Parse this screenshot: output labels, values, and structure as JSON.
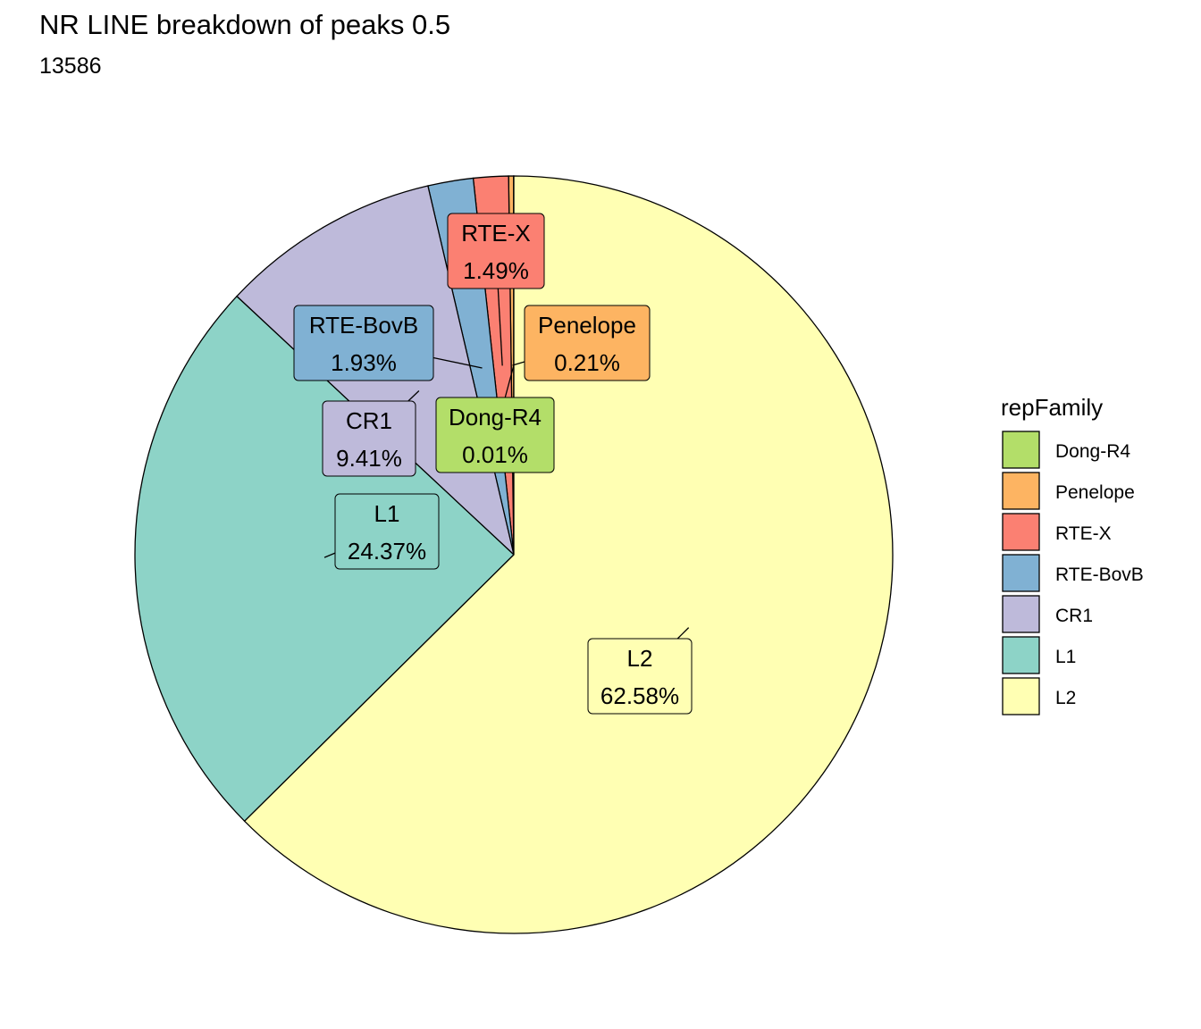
{
  "chart_data": {
    "type": "pie",
    "title": "NR LINE breakdown of peaks 0.5",
    "subtitle": "13586",
    "legend": {
      "title": "repFamily",
      "position": "right",
      "entries": [
        "Dong-R4",
        "Penelope",
        "RTE-X",
        "RTE-BovB",
        "CR1",
        "L1",
        "L2"
      ]
    },
    "slices": [
      {
        "label": "Dong-R4",
        "value": 0.01,
        "value_label": "0.01%",
        "color": "#b3de69"
      },
      {
        "label": "Penelope",
        "value": 0.21,
        "value_label": "0.21%",
        "color": "#fdb462"
      },
      {
        "label": "RTE-X",
        "value": 1.49,
        "value_label": "1.49%",
        "color": "#fb8072"
      },
      {
        "label": "RTE-BovB",
        "value": 1.93,
        "value_label": "1.93%",
        "color": "#80b1d3"
      },
      {
        "label": "CR1",
        "value": 9.41,
        "value_label": "9.41%",
        "color": "#bebada"
      },
      {
        "label": "L1",
        "value": 24.37,
        "value_label": "24.37%",
        "color": "#8dd3c7"
      },
      {
        "label": "L2",
        "value": 62.58,
        "value_label": "62.58%",
        "color": "#ffffb3"
      }
    ]
  }
}
